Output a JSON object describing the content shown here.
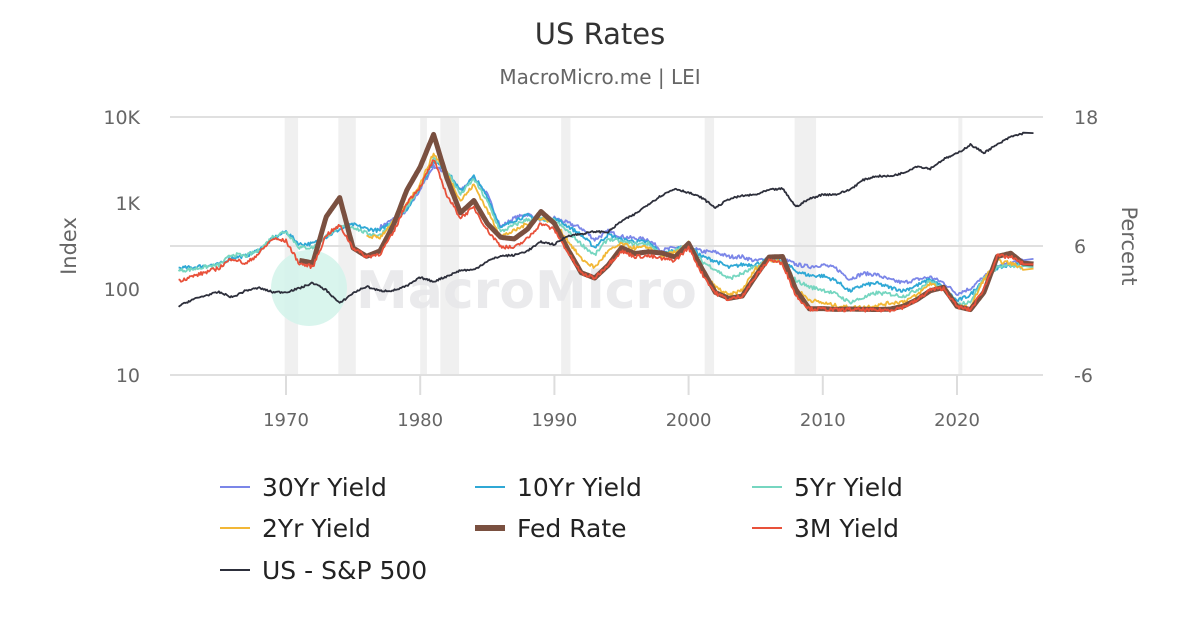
{
  "chart_data": {
    "type": "line",
    "title": "US Rates",
    "subtitle": "MacroMicro.me | LEI",
    "watermark": "MacroMicro",
    "y_left": {
      "label": "Index",
      "scale": "log",
      "range": [
        10,
        10000
      ],
      "ticks": [
        "10",
        "100",
        "1K",
        "10K"
      ],
      "tick_values": [
        10,
        100,
        1000,
        10000
      ]
    },
    "y_right": {
      "label": "Percent",
      "scale": "linear",
      "range": [
        -6,
        18
      ],
      "ticks": [
        "-6",
        "6",
        "18"
      ],
      "tick_values": [
        -6,
        6,
        18
      ]
    },
    "x_axis": {
      "range": [
        1962,
        2026
      ],
      "ticks": [
        "1970",
        "1980",
        "1990",
        "2000",
        "2010",
        "2020"
      ],
      "tick_values": [
        1970,
        1980,
        1990,
        2000,
        2010,
        2020
      ]
    },
    "grid": true,
    "legend_placement": "bottom",
    "recessions": [
      [
        1969.9,
        1970.9
      ],
      [
        1973.9,
        1975.2
      ],
      [
        1980.0,
        1980.5
      ],
      [
        1981.5,
        1982.9
      ],
      [
        1990.5,
        1991.2
      ],
      [
        2001.2,
        2001.9
      ],
      [
        2007.9,
        2009.5
      ],
      [
        2020.1,
        2020.4
      ]
    ],
    "series": [
      {
        "name": "30Yr Yield",
        "axis": "right",
        "color": "#7b86e8",
        "start_year": 1977,
        "values": [
          7.75,
          8.49,
          9.29,
          11.27,
          13.45,
          12.76,
          11.18,
          12.41,
          10.79,
          7.78,
          8.59,
          8.96,
          8.45,
          8.61,
          8.14,
          7.67,
          6.59,
          7.37,
          6.88,
          6.71,
          6.61,
          5.58,
          5.87,
          5.94,
          5.49,
          5.43,
          5.0,
          5.0,
          4.6,
          4.9,
          4.84,
          4.28,
          4.08,
          4.25,
          3.91,
          2.92,
          3.45,
          3.34,
          2.84,
          2.59,
          2.89,
          3.11,
          2.58,
          1.56,
          2.05,
          3.11,
          4.09,
          4.41,
          4.8
        ]
      },
      {
        "name": "10Yr Yield",
        "axis": "right",
        "color": "#2fa8d5",
        "start_year": 1962,
        "values": [
          3.95,
          4.0,
          4.19,
          4.28,
          4.93,
          5.07,
          5.64,
          6.67,
          7.35,
          6.16,
          6.21,
          6.85,
          7.56,
          7.99,
          7.61,
          7.42,
          8.41,
          9.43,
          11.43,
          13.92,
          13.01,
          11.1,
          12.46,
          10.62,
          7.67,
          8.39,
          8.85,
          8.49,
          8.55,
          7.86,
          7.01,
          5.87,
          7.09,
          6.57,
          6.44,
          6.35,
          5.26,
          5.65,
          6.03,
          5.02,
          4.61,
          4.01,
          4.27,
          4.29,
          4.8,
          4.63,
          3.66,
          3.26,
          3.22,
          2.78,
          1.8,
          2.35,
          2.54,
          2.14,
          1.84,
          2.33,
          2.91,
          2.14,
          0.89,
          1.45,
          2.95,
          3.96,
          4.21,
          4.3
        ]
      },
      {
        "name": "5Yr Yield",
        "axis": "right",
        "color": "#76d6c0",
        "start_year": 1962,
        "values": [
          3.7,
          3.83,
          4.06,
          4.22,
          5.23,
          5.07,
          5.59,
          6.85,
          7.37,
          5.85,
          5.85,
          6.92,
          7.81,
          7.78,
          7.18,
          6.99,
          8.32,
          9.52,
          11.48,
          14.24,
          13.01,
          10.8,
          12.24,
          10.13,
          7.31,
          7.94,
          8.47,
          8.5,
          8.37,
          7.37,
          6.19,
          5.14,
          6.69,
          6.38,
          6.18,
          6.22,
          5.15,
          5.55,
          6.16,
          4.56,
          3.82,
          2.97,
          3.43,
          4.05,
          4.75,
          4.43,
          2.8,
          2.2,
          1.93,
          1.52,
          0.76,
          1.17,
          1.64,
          1.53,
          1.33,
          1.91,
          2.75,
          1.96,
          0.53,
          0.86,
          3.0,
          4.06,
          4.2,
          4.0
        ]
      },
      {
        "name": "2Yr Yield",
        "axis": "right",
        "color": "#f2b736",
        "start_year": 1976,
        "values": [
          6.9,
          6.8,
          8.3,
          9.9,
          11.8,
          14.6,
          12.8,
          10.2,
          11.7,
          9.3,
          6.9,
          7.4,
          8.1,
          8.6,
          8.2,
          6.5,
          4.8,
          4.0,
          5.5,
          6.2,
          5.8,
          5.9,
          5.1,
          5.4,
          6.3,
          3.6,
          2.2,
          1.4,
          1.9,
          3.9,
          4.8,
          4.4,
          2.0,
          1.0,
          0.7,
          0.45,
          0.28,
          0.31,
          0.46,
          0.69,
          0.84,
          1.4,
          2.53,
          1.97,
          0.39,
          0.27,
          2.9,
          4.6,
          4.4,
          3.9
        ]
      },
      {
        "name": "Fed Rate",
        "axis": "right",
        "color": "#7a5040",
        "start_year": 1971,
        "values": [
          4.66,
          4.43,
          8.73,
          10.5,
          5.82,
          5.04,
          5.54,
          7.93,
          11.19,
          13.36,
          16.38,
          12.26,
          9.09,
          10.23,
          8.1,
          6.81,
          6.66,
          7.57,
          9.21,
          8.1,
          5.69,
          3.52,
          3.02,
          4.2,
          5.84,
          5.3,
          5.46,
          5.35,
          4.97,
          6.24,
          3.88,
          1.67,
          1.13,
          1.35,
          3.22,
          4.97,
          5.02,
          1.92,
          0.16,
          0.18,
          0.1,
          0.14,
          0.11,
          0.09,
          0.13,
          0.4,
          1.0,
          1.83,
          2.16,
          0.38,
          0.08,
          1.68,
          5.02,
          5.33,
          4.33
        ]
      },
      {
        "name": "3M Yield",
        "axis": "right",
        "color": "#e8513a",
        "start_year": 1962,
        "values": [
          2.77,
          3.16,
          3.55,
          3.95,
          4.88,
          4.32,
          5.34,
          6.68,
          6.46,
          4.35,
          4.07,
          7.04,
          7.89,
          5.84,
          4.99,
          5.27,
          7.22,
          10.04,
          11.51,
          14.03,
          10.69,
          8.63,
          9.58,
          7.48,
          5.98,
          5.82,
          6.69,
          8.12,
          7.51,
          5.42,
          3.45,
          3.02,
          4.29,
          5.51,
          5.02,
          5.07,
          4.81,
          4.66,
          5.85,
          3.44,
          1.62,
          1.01,
          1.37,
          3.15,
          4.73,
          4.36,
          1.37,
          0.15,
          0.14,
          0.05,
          0.09,
          0.06,
          0.03,
          0.05,
          0.32,
          0.93,
          1.94,
          2.06,
          0.37,
          0.05,
          2.02,
          5.07,
          4.97,
          4.3
        ]
      },
      {
        "name": "US - S&P 500",
        "axis": "left",
        "color": "#2d2f3b",
        "start_year": 1962,
        "values": [
          63,
          75,
          84,
          92,
          80,
          96,
          103,
          92,
          92,
          102,
          118,
          97,
          68,
          90,
          107,
          95,
          96,
          108,
          136,
          122,
          141,
          165,
          167,
          211,
          242,
          247,
          278,
          353,
          330,
          417,
          436,
          466,
          459,
          616,
          741,
          970,
          1229,
          1469,
          1320,
          1148,
          880,
          1112,
          1212,
          1248,
          1418,
          1468,
          903,
          1115,
          1258,
          1258,
          1426,
          1848,
          2059,
          2044,
          2239,
          2674,
          2507,
          3231,
          3756,
          4766,
          3840,
          4770,
          5882,
          6500
        ]
      }
    ]
  }
}
